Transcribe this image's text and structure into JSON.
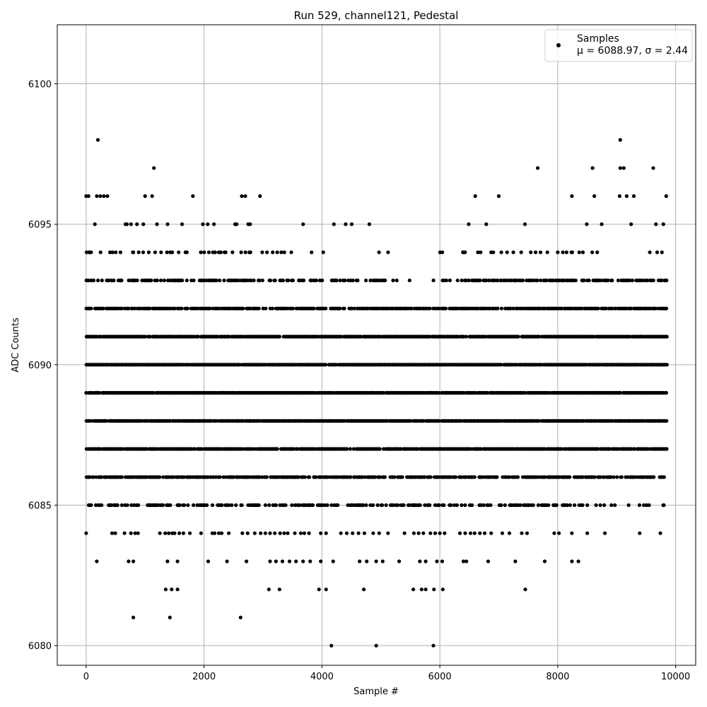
{
  "chart_data": {
    "type": "scatter",
    "title": "Run 529, channel121, Pedestal",
    "xlabel": "Sample #",
    "ylabel": "ADC Counts",
    "xlim": [
      -490,
      10340
    ],
    "ylim": [
      6079.3,
      6102.1
    ],
    "xticks": [
      0,
      2000,
      4000,
      6000,
      8000,
      10000
    ],
    "yticks": [
      6080,
      6085,
      6090,
      6095,
      6100
    ],
    "grid": true,
    "legend_position": "top-right",
    "series": [
      {
        "name": "Samples",
        "legend_label": "μ = 6088.97, σ = 2.44",
        "color": "#000000",
        "marker": "circle",
        "n_points": 9860,
        "levels": [
          {
            "y": 6084,
            "x": [
              0,
              440,
              495,
              650,
              760,
              830,
              880,
              1250,
              1340,
              1400,
              1460,
              1500,
              1580,
              1650,
              1760,
              1950,
              2140,
              2180,
              2250,
              2300,
              2420,
              2650,
              2740,
              2860,
              2960,
              3040,
              3120,
              3200,
              3290,
              3360,
              3420,
              3540,
              3640,
              3700,
              3780,
              3980,
              4070,
              4320,
              4420,
              4520,
              4620,
              4720,
              4870,
              4970,
              5120,
              5400,
              5560,
              5640,
              5720,
              5840,
              5920,
              6000,
              6080,
              6340,
              6430,
              6520,
              6590,
              6680,
              6760,
              6870,
              7060,
              7180,
              7390,
              7480,
              7940,
              8020,
              8240,
              8500,
              8800,
              9390,
              9740
            ]
          },
          {
            "y": 6083,
            "x": [
              180,
              720,
              800,
              1380,
              1550,
              2070,
              2390,
              2720,
              3120,
              3220,
              3330,
              3450,
              3560,
              3680,
              3800,
              3980,
              4190,
              4640,
              4760,
              4920,
              5030,
              5310,
              5660,
              5760,
              5950,
              6040,
              6400,
              6450,
              6820,
              7280,
              7780,
              8240,
              8350
            ]
          },
          {
            "y": 6082,
            "x": [
              1350,
              1450,
              1550,
              3100,
              3280,
              3950,
              4070,
              4710,
              5550,
              5690,
              5760,
              5900,
              6050,
              7450
            ]
          },
          {
            "y": 6081,
            "x": [
              800,
              1420,
              2620
            ]
          },
          {
            "y": 6080,
            "x": [
              4160,
              4920,
              5890
            ]
          }
        ],
        "high_points": [
          {
            "x": 200,
            "y": 6098
          },
          {
            "x": 9060,
            "y": 6098
          },
          {
            "x": 1150,
            "y": 6097
          },
          {
            "x": 7660,
            "y": 6097
          },
          {
            "x": 8590,
            "y": 6097
          },
          {
            "x": 9060,
            "y": 6097
          },
          {
            "x": 9120,
            "y": 6097
          },
          {
            "x": 9620,
            "y": 6097
          },
          {
            "x": 0,
            "y": 6096
          },
          {
            "x": 40,
            "y": 6096
          },
          {
            "x": 180,
            "y": 6096
          },
          {
            "x": 240,
            "y": 6096
          },
          {
            "x": 300,
            "y": 6096
          },
          {
            "x": 360,
            "y": 6096
          },
          {
            "x": 1000,
            "y": 6096
          },
          {
            "x": 1120,
            "y": 6096
          },
          {
            "x": 1810,
            "y": 6096
          },
          {
            "x": 2640,
            "y": 6096
          },
          {
            "x": 2700,
            "y": 6096
          },
          {
            "x": 2950,
            "y": 6096
          },
          {
            "x": 6600,
            "y": 6096
          },
          {
            "x": 7000,
            "y": 6096
          },
          {
            "x": 8240,
            "y": 6096
          },
          {
            "x": 8620,
            "y": 6096
          },
          {
            "x": 9050,
            "y": 6096
          },
          {
            "x": 9170,
            "y": 6096
          },
          {
            "x": 9290,
            "y": 6096
          },
          {
            "x": 9840,
            "y": 6096
          }
        ]
      }
    ]
  }
}
